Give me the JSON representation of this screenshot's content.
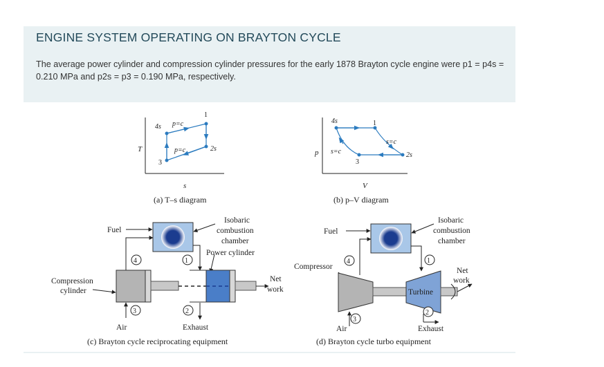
{
  "header": {
    "title": "ENGINE SYSTEM OPERATING ON BRAYTON CYCLE",
    "description": "The average power cylinder and compression cylinder pressures for the early 1878 Brayton cycle engine were p1 = p4s = 0.210 MPa and p2s = p3 = 0.190 MPa, respectively."
  },
  "figure": {
    "ts": {
      "axis_y": "T",
      "axis_x": "s",
      "caption": "(a) T–s diagram",
      "label_top": "p=c",
      "label_bottom": "p=c",
      "pt_1": "1",
      "pt_4s": "4s",
      "pt_2s": "2s",
      "pt_3": "3"
    },
    "pv": {
      "axis_y": "p",
      "axis_x": "V",
      "caption": "(b) p–V diagram",
      "label_right": "s=c",
      "label_left": "s=c",
      "pt_4s": "4s",
      "pt_1": "1",
      "pt_2s": "2s",
      "pt_3": "3"
    },
    "recip": {
      "fuel": "Fuel",
      "isobaric_1": "Isobaric",
      "isobaric_2": "combustion",
      "isobaric_3": "chamber",
      "power_cylinder": "Power cylinder",
      "compression_1": "Compression",
      "compression_2": "cylinder",
      "net_1": "Net",
      "net_2": "work",
      "air": "Air",
      "exhaust": "Exhaust",
      "n4": "4",
      "n1": "1",
      "n3": "3",
      "n2": "2",
      "caption": "(c) Brayton cycle reciprocating equipment"
    },
    "turbo": {
      "fuel": "Fuel",
      "isobaric_1": "Isobaric",
      "isobaric_2": "combustion",
      "isobaric_3": "chamber",
      "compressor": "Compressor",
      "turbine": "Turbine",
      "net_1": "Net",
      "net_2": "work",
      "air": "Air",
      "exhaust": "Exhaust",
      "n4": "4",
      "n1": "1",
      "n3": "3",
      "n2": "2",
      "caption": "(d) Brayton cycle turbo equipment"
    }
  }
}
